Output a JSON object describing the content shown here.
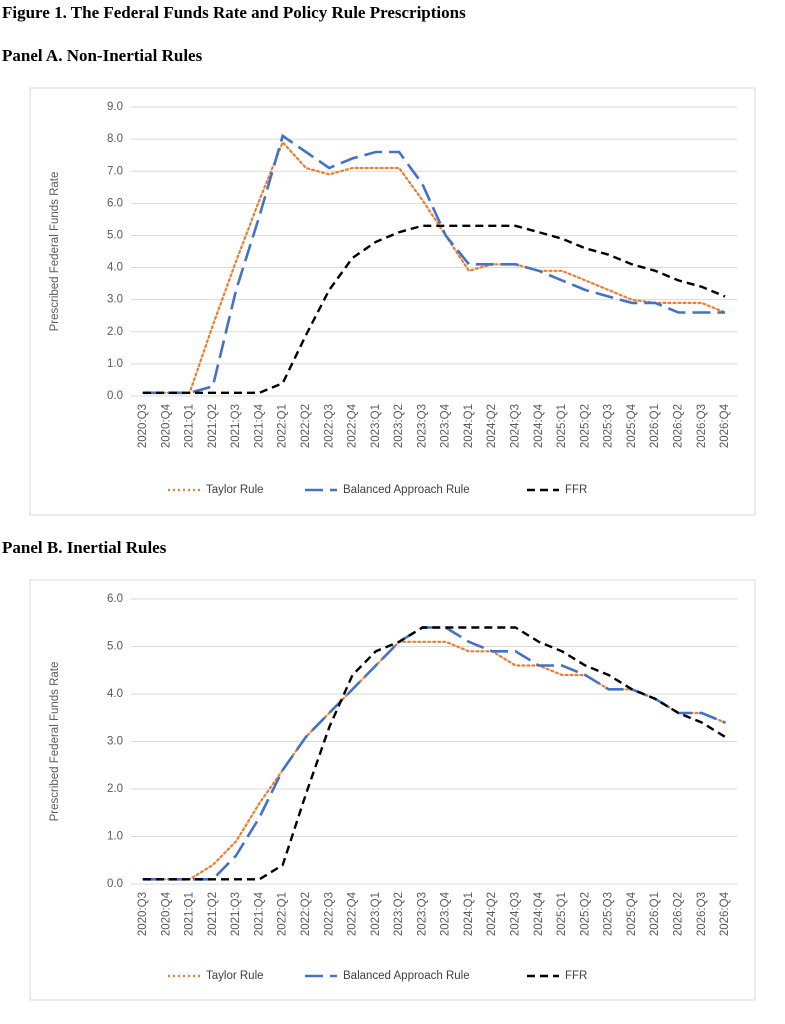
{
  "title": "Figure 1. The Federal Funds Rate and Policy Rule Prescriptions",
  "chart_data": [
    {
      "type": "line",
      "title": "Panel A. Non-Inertial Rules",
      "y_label": "Prescribed Federal Funds Rate",
      "categories": [
        "2020:Q3",
        "2020:Q4",
        "2021:Q1",
        "2021:Q2",
        "2021:Q3",
        "2021:Q4",
        "2022:Q1",
        "2022:Q2",
        "2022:Q3",
        "2022:Q4",
        "2023:Q1",
        "2023:Q2",
        "2023:Q3",
        "2023:Q4",
        "2024:Q1",
        "2024:Q2",
        "2024:Q3",
        "2024:Q4",
        "2025:Q1",
        "2025:Q2",
        "2025:Q3",
        "2025:Q4",
        "2026:Q1",
        "2026:Q2",
        "2026:Q3",
        "2026:Q4"
      ],
      "ylim": [
        0,
        9
      ],
      "yticks": [
        {
          "value": 0,
          "label": "0.0"
        },
        {
          "value": 1,
          "label": "1.0"
        },
        {
          "value": 2,
          "label": "2.0"
        },
        {
          "value": 3,
          "label": "3.0"
        },
        {
          "value": 4,
          "label": "4.0"
        },
        {
          "value": 5,
          "label": "5.0"
        },
        {
          "value": 6,
          "label": "6.0"
        },
        {
          "value": 7,
          "label": "7.0"
        },
        {
          "value": 8,
          "label": "8.0"
        },
        {
          "value": 9,
          "label": "9.0"
        }
      ],
      "grid": true,
      "legend": "bottom",
      "series": [
        {
          "name": "Taylor Rule",
          "color": "#ed7d31",
          "values": [
            0.1,
            0.1,
            0.1,
            2.2,
            4.2,
            6.1,
            7.9,
            7.1,
            6.9,
            7.1,
            7.1,
            7.1,
            6.1,
            5.0,
            3.9,
            4.1,
            4.1,
            3.9,
            3.9,
            3.6,
            3.3,
            3.0,
            2.9,
            2.9,
            2.9,
            2.6
          ]
        },
        {
          "name": "Balanced Approach Rule",
          "color": "#4472c4",
          "values": [
            0.1,
            0.1,
            0.1,
            0.3,
            3.3,
            5.6,
            8.1,
            7.6,
            7.1,
            7.4,
            7.6,
            7.6,
            6.6,
            5.0,
            4.1,
            4.1,
            4.1,
            3.9,
            3.6,
            3.3,
            3.1,
            2.9,
            2.9,
            2.6,
            2.6,
            2.6
          ]
        },
        {
          "name": "FFR",
          "color": "#000000",
          "values": [
            0.1,
            0.1,
            0.1,
            0.1,
            0.1,
            0.1,
            0.4,
            1.9,
            3.3,
            4.3,
            4.8,
            5.1,
            5.3,
            5.3,
            5.3,
            5.3,
            5.3,
            5.1,
            4.9,
            4.6,
            4.4,
            4.1,
            3.9,
            3.6,
            3.4,
            3.1
          ]
        }
      ]
    },
    {
      "type": "line",
      "title": "Panel B. Inertial Rules",
      "y_label": "Prescribed Federal Funds Rate",
      "categories": [
        "2020:Q3",
        "2020:Q4",
        "2021:Q1",
        "2021:Q2",
        "2021:Q3",
        "2021:Q4",
        "2022:Q1",
        "2022:Q2",
        "2022:Q3",
        "2022:Q4",
        "2023:Q1",
        "2023:Q2",
        "2023:Q3",
        "2023:Q4",
        "2024:Q1",
        "2024:Q2",
        "2024:Q3",
        "2024:Q4",
        "2025:Q1",
        "2025:Q2",
        "2025:Q3",
        "2025:Q4",
        "2026:Q1",
        "2026:Q2",
        "2026:Q3",
        "2026:Q4"
      ],
      "ylim": [
        0,
        6
      ],
      "yticks": [
        {
          "value": 0,
          "label": "0.0"
        },
        {
          "value": 1,
          "label": "1.0"
        },
        {
          "value": 2,
          "label": "2.0"
        },
        {
          "value": 3,
          "label": "3.0"
        },
        {
          "value": 4,
          "label": "4.0"
        },
        {
          "value": 5,
          "label": "5.0"
        },
        {
          "value": 6,
          "label": "6.0"
        }
      ],
      "grid": true,
      "legend": "bottom",
      "series": [
        {
          "name": "Taylor Rule",
          "color": "#ed7d31",
          "values": [
            0.1,
            0.1,
            0.1,
            0.4,
            0.9,
            1.7,
            2.4,
            3.1,
            3.6,
            4.1,
            4.6,
            5.1,
            5.1,
            5.1,
            4.9,
            4.9,
            4.6,
            4.6,
            4.4,
            4.4,
            4.1,
            4.1,
            3.9,
            3.6,
            3.6,
            3.4
          ]
        },
        {
          "name": "Balanced Approach Rule",
          "color": "#4472c4",
          "values": [
            0.1,
            0.1,
            0.1,
            0.1,
            0.6,
            1.4,
            2.4,
            3.1,
            3.6,
            4.1,
            4.6,
            5.1,
            5.4,
            5.4,
            5.1,
            4.9,
            4.9,
            4.6,
            4.6,
            4.4,
            4.1,
            4.1,
            3.9,
            3.6,
            3.6,
            3.4
          ]
        },
        {
          "name": "FFR",
          "color": "#000000",
          "values": [
            0.1,
            0.1,
            0.1,
            0.1,
            0.1,
            0.1,
            0.4,
            1.9,
            3.3,
            4.4,
            4.9,
            5.1,
            5.4,
            5.4,
            5.4,
            5.4,
            5.4,
            5.1,
            4.9,
            4.6,
            4.4,
            4.1,
            3.9,
            3.6,
            3.4,
            3.1
          ]
        }
      ]
    }
  ]
}
